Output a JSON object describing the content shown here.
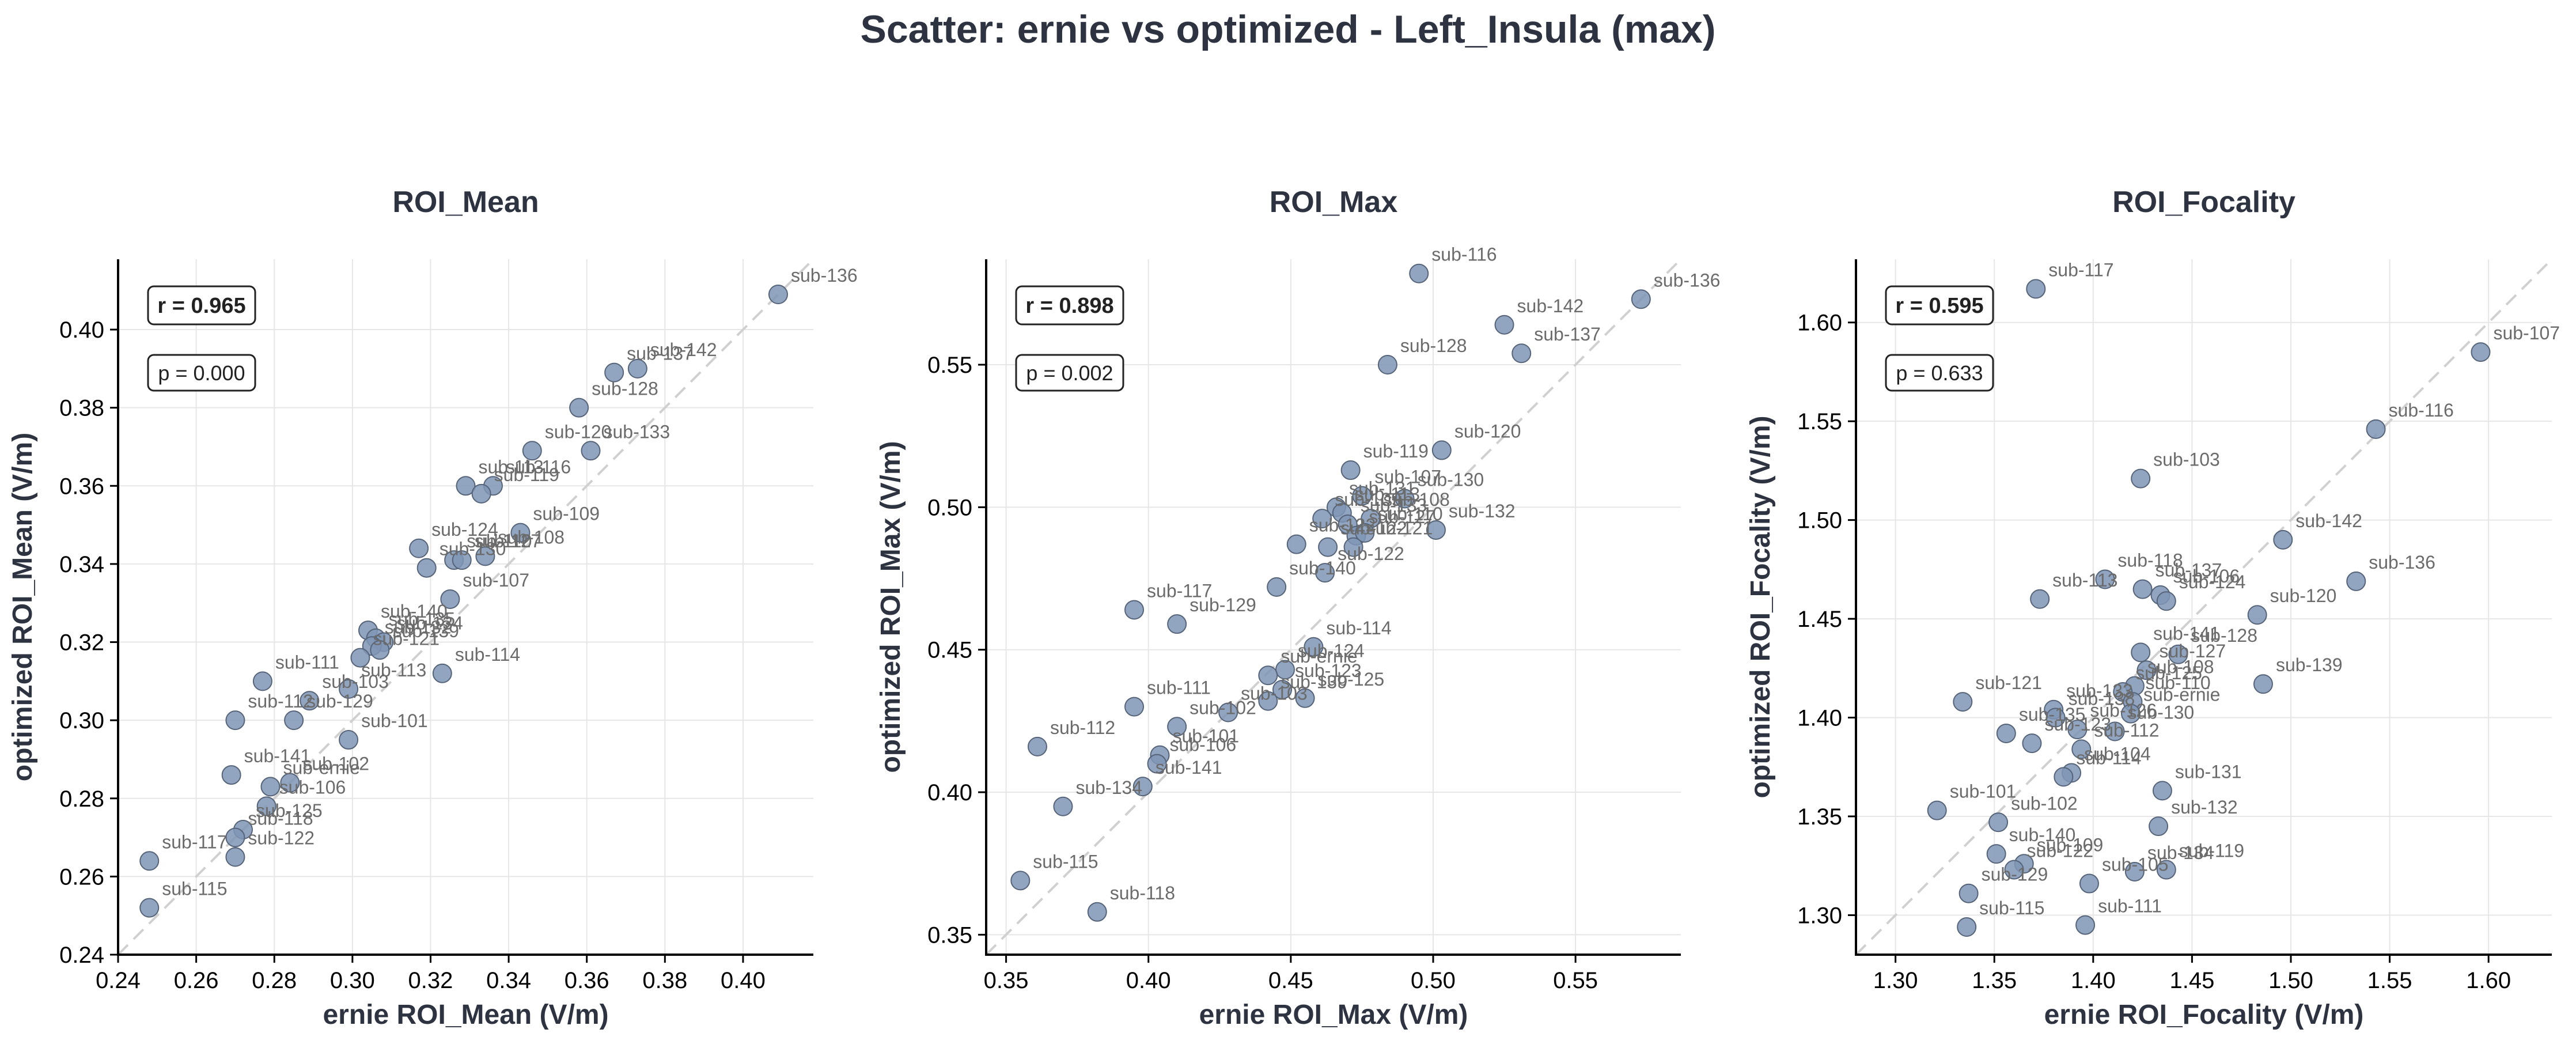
{
  "figure_title": "Scatter: ernie vs optimized - Left_Insula (max)",
  "colors": {
    "point": "#7f95b5",
    "point_edge": "#56647a",
    "label": "#6b6b6b",
    "grid": "#e6e6e6",
    "diag": "#d0d0d0",
    "text": "#2d3340"
  },
  "chart_data": [
    {
      "type": "scatter",
      "title": "ROI_Mean",
      "xlabel": "ernie ROI_Mean (V/m)",
      "ylabel": "optimized ROI_Mean (V/m)",
      "xlim": [
        0.24,
        0.418
      ],
      "ylim": [
        0.24,
        0.418
      ],
      "xticks": [
        "0.24",
        "0.26",
        "0.28",
        "0.30",
        "0.32",
        "0.34",
        "0.36",
        "0.38",
        "0.40"
      ],
      "yticks": [
        "0.24",
        "0.26",
        "0.28",
        "0.30",
        "0.32",
        "0.34",
        "0.36",
        "0.38",
        "0.40"
      ],
      "r_label": "r = 0.965",
      "p_label": "p = 0.000",
      "grid": true,
      "identity_line": true,
      "points": [
        {
          "label": "sub-136",
          "x": 0.409,
          "y": 0.409
        },
        {
          "label": "sub-142",
          "x": 0.373,
          "y": 0.39
        },
        {
          "label": "sub-137",
          "x": 0.367,
          "y": 0.389
        },
        {
          "label": "sub-128",
          "x": 0.358,
          "y": 0.38
        },
        {
          "label": "sub-120",
          "x": 0.346,
          "y": 0.369
        },
        {
          "label": "sub-133",
          "x": 0.361,
          "y": 0.369
        },
        {
          "label": "sub-113",
          "x": 0.329,
          "y": 0.36
        },
        {
          "label": "sub-116",
          "x": 0.336,
          "y": 0.36
        },
        {
          "label": "sub-119",
          "x": 0.333,
          "y": 0.358
        },
        {
          "label": "sub-109",
          "x": 0.343,
          "y": 0.348
        },
        {
          "label": "sub-124",
          "x": 0.317,
          "y": 0.344
        },
        {
          "label": "sub-110",
          "x": 0.326,
          "y": 0.341
        },
        {
          "label": "sub-127",
          "x": 0.328,
          "y": 0.341
        },
        {
          "label": "sub-108",
          "x": 0.334,
          "y": 0.342
        },
        {
          "label": "sub-130",
          "x": 0.319,
          "y": 0.339
        },
        {
          "label": "sub-107",
          "x": 0.325,
          "y": 0.331
        },
        {
          "label": "sub-140",
          "x": 0.304,
          "y": 0.323
        },
        {
          "label": "sub-135",
          "x": 0.306,
          "y": 0.321
        },
        {
          "label": "sub-134",
          "x": 0.308,
          "y": 0.32
        },
        {
          "label": "sub-132",
          "x": 0.305,
          "y": 0.319
        },
        {
          "label": "sub-139",
          "x": 0.307,
          "y": 0.318
        },
        {
          "label": "sub-121",
          "x": 0.302,
          "y": 0.316
        },
        {
          "label": "sub-114",
          "x": 0.323,
          "y": 0.312
        },
        {
          "label": "sub-111",
          "x": 0.277,
          "y": 0.31
        },
        {
          "label": "sub-113",
          "x": 0.299,
          "y": 0.308
        },
        {
          "label": "sub-103",
          "x": 0.289,
          "y": 0.305
        },
        {
          "label": "sub-129",
          "x": 0.285,
          "y": 0.3
        },
        {
          "label": "sub-112",
          "x": 0.27,
          "y": 0.3
        },
        {
          "label": "sub-101",
          "x": 0.299,
          "y": 0.295
        },
        {
          "label": "sub-141",
          "x": 0.269,
          "y": 0.286
        },
        {
          "label": "sub-102",
          "x": 0.284,
          "y": 0.284
        },
        {
          "label": "sub-ernie",
          "x": 0.279,
          "y": 0.283
        },
        {
          "label": "sub-106",
          "x": 0.278,
          "y": 0.278
        },
        {
          "label": "sub-125",
          "x": 0.272,
          "y": 0.272
        },
        {
          "label": "sub-117",
          "x": 0.248,
          "y": 0.264
        },
        {
          "label": "sub-118",
          "x": 0.27,
          "y": 0.27
        },
        {
          "label": "sub-122",
          "x": 0.27,
          "y": 0.265
        },
        {
          "label": "sub-115",
          "x": 0.248,
          "y": 0.252
        }
      ]
    },
    {
      "type": "scatter",
      "title": "ROI_Max",
      "xlabel": "ernie ROI_Max (V/m)",
      "ylabel": "optimized ROI_Max (V/m)",
      "xlim": [
        0.343,
        0.587
      ],
      "ylim": [
        0.343,
        0.587
      ],
      "xticks": [
        "0.35",
        "0.40",
        "0.45",
        "0.50",
        "0.55"
      ],
      "yticks": [
        "0.35",
        "0.40",
        "0.45",
        "0.50",
        "0.55"
      ],
      "r_label": "r = 0.898",
      "p_label": "p = 0.002",
      "grid": true,
      "identity_line": true,
      "points": [
        {
          "label": "sub-116",
          "x": 0.495,
          "y": 0.582
        },
        {
          "label": "sub-136",
          "x": 0.573,
          "y": 0.573
        },
        {
          "label": "sub-142",
          "x": 0.525,
          "y": 0.564
        },
        {
          "label": "sub-137",
          "x": 0.531,
          "y": 0.554
        },
        {
          "label": "sub-128",
          "x": 0.484,
          "y": 0.55
        },
        {
          "label": "sub-120",
          "x": 0.503,
          "y": 0.52
        },
        {
          "label": "sub-119",
          "x": 0.471,
          "y": 0.513
        },
        {
          "label": "sub-107",
          "x": 0.475,
          "y": 0.504
        },
        {
          "label": "sub-130",
          "x": 0.49,
          "y": 0.503
        },
        {
          "label": "sub-131",
          "x": 0.466,
          "y": 0.5
        },
        {
          "label": "sub-113",
          "x": 0.468,
          "y": 0.498
        },
        {
          "label": "sub-108",
          "x": 0.478,
          "y": 0.496
        },
        {
          "label": "sub-132",
          "x": 0.501,
          "y": 0.492
        },
        {
          "label": "sub-109",
          "x": 0.461,
          "y": 0.496
        },
        {
          "label": "sub-133",
          "x": 0.47,
          "y": 0.494
        },
        {
          "label": "sub-127",
          "x": 0.473,
          "y": 0.49
        },
        {
          "label": "sub-110",
          "x": 0.476,
          "y": 0.491
        },
        {
          "label": "sub-121",
          "x": 0.472,
          "y": 0.486
        },
        {
          "label": "sub-122",
          "x": 0.463,
          "y": 0.486
        },
        {
          "label": "sub-122",
          "x": 0.452,
          "y": 0.487
        },
        {
          "label": "sub-122",
          "x": 0.462,
          "y": 0.477
        },
        {
          "label": "sub-140",
          "x": 0.445,
          "y": 0.472
        },
        {
          "label": "sub-117",
          "x": 0.395,
          "y": 0.464
        },
        {
          "label": "sub-129",
          "x": 0.41,
          "y": 0.459
        },
        {
          "label": "sub-114",
          "x": 0.458,
          "y": 0.451
        },
        {
          "label": "sub-124",
          "x": 0.448,
          "y": 0.443
        },
        {
          "label": "sub-ernie",
          "x": 0.442,
          "y": 0.441
        },
        {
          "label": "sub-123",
          "x": 0.447,
          "y": 0.436
        },
        {
          "label": "sub-125",
          "x": 0.455,
          "y": 0.433
        },
        {
          "label": "sub-139",
          "x": 0.442,
          "y": 0.432
        },
        {
          "label": "sub-111",
          "x": 0.395,
          "y": 0.43
        },
        {
          "label": "sub-103",
          "x": 0.428,
          "y": 0.428
        },
        {
          "label": "sub-102",
          "x": 0.41,
          "y": 0.423
        },
        {
          "label": "sub-101",
          "x": 0.404,
          "y": 0.413
        },
        {
          "label": "sub-112",
          "x": 0.361,
          "y": 0.416
        },
        {
          "label": "sub-106",
          "x": 0.403,
          "y": 0.41
        },
        {
          "label": "sub-141",
          "x": 0.398,
          "y": 0.402
        },
        {
          "label": "sub-134",
          "x": 0.37,
          "y": 0.395
        },
        {
          "label": "sub-115",
          "x": 0.355,
          "y": 0.369
        },
        {
          "label": "sub-118",
          "x": 0.382,
          "y": 0.358
        }
      ]
    },
    {
      "type": "scatter",
      "title": "ROI_Focality",
      "xlabel": "ernie ROI_Focality (V/m)",
      "ylabel": "optimized ROI_Focality (V/m)",
      "xlim": [
        1.28,
        1.632
      ],
      "ylim": [
        1.28,
        1.632
      ],
      "xticks": [
        "1.30",
        "1.35",
        "1.40",
        "1.45",
        "1.50",
        "1.55",
        "1.60"
      ],
      "yticks": [
        "1.30",
        "1.35",
        "1.40",
        "1.45",
        "1.50",
        "1.55",
        "1.60"
      ],
      "r_label": "r = 0.595",
      "p_label": "p = 0.633",
      "grid": true,
      "identity_line": true,
      "points": [
        {
          "label": "sub-117",
          "x": 1.371,
          "y": 1.617
        },
        {
          "label": "sub-107",
          "x": 1.596,
          "y": 1.585
        },
        {
          "label": "sub-116",
          "x": 1.543,
          "y": 1.546
        },
        {
          "label": "sub-103",
          "x": 1.424,
          "y": 1.521
        },
        {
          "label": "sub-142",
          "x": 1.496,
          "y": 1.49
        },
        {
          "label": "sub-136",
          "x": 1.533,
          "y": 1.469
        },
        {
          "label": "sub-137",
          "x": 1.425,
          "y": 1.465
        },
        {
          "label": "sub-106",
          "x": 1.434,
          "y": 1.462
        },
        {
          "label": "sub-124",
          "x": 1.437,
          "y": 1.459
        },
        {
          "label": "sub-113",
          "x": 1.373,
          "y": 1.46
        },
        {
          "label": "sub-118",
          "x": 1.406,
          "y": 1.47
        },
        {
          "label": "sub-120",
          "x": 1.483,
          "y": 1.452
        },
        {
          "label": "sub-141",
          "x": 1.424,
          "y": 1.433
        },
        {
          "label": "sub-128",
          "x": 1.443,
          "y": 1.432
        },
        {
          "label": "sub-139",
          "x": 1.486,
          "y": 1.417
        },
        {
          "label": "sub-127",
          "x": 1.427,
          "y": 1.424
        },
        {
          "label": "sub-108",
          "x": 1.421,
          "y": 1.416
        },
        {
          "label": "sub-125",
          "x": 1.415,
          "y": 1.413
        },
        {
          "label": "sub-110",
          "x": 1.42,
          "y": 1.408
        },
        {
          "label": "sub-121",
          "x": 1.334,
          "y": 1.408
        },
        {
          "label": "sub-ernie",
          "x": 1.419,
          "y": 1.402
        },
        {
          "label": "sub-133",
          "x": 1.38,
          "y": 1.404
        },
        {
          "label": "sub-138",
          "x": 1.381,
          "y": 1.4
        },
        {
          "label": "sub-126",
          "x": 1.392,
          "y": 1.394
        },
        {
          "label": "sub-130",
          "x": 1.411,
          "y": 1.393
        },
        {
          "label": "sub-135",
          "x": 1.356,
          "y": 1.392
        },
        {
          "label": "sub-123",
          "x": 1.369,
          "y": 1.387
        },
        {
          "label": "sub-112",
          "x": 1.394,
          "y": 1.384
        },
        {
          "label": "sub-104",
          "x": 1.389,
          "y": 1.372
        },
        {
          "label": "sub-114",
          "x": 1.385,
          "y": 1.37
        },
        {
          "label": "sub-131",
          "x": 1.435,
          "y": 1.363
        },
        {
          "label": "sub-101",
          "x": 1.321,
          "y": 1.353
        },
        {
          "label": "sub-102",
          "x": 1.352,
          "y": 1.347
        },
        {
          "label": "sub-132",
          "x": 1.433,
          "y": 1.345
        },
        {
          "label": "sub-140",
          "x": 1.351,
          "y": 1.331
        },
        {
          "label": "sub-109",
          "x": 1.365,
          "y": 1.326
        },
        {
          "label": "sub-122",
          "x": 1.36,
          "y": 1.323
        },
        {
          "label": "sub-134",
          "x": 1.421,
          "y": 1.322
        },
        {
          "label": "sub-119",
          "x": 1.437,
          "y": 1.323
        },
        {
          "label": "sub-105",
          "x": 1.398,
          "y": 1.316
        },
        {
          "label": "sub-129",
          "x": 1.337,
          "y": 1.311
        },
        {
          "label": "sub-111",
          "x": 1.396,
          "y": 1.295
        },
        {
          "label": "sub-115",
          "x": 1.336,
          "y": 1.294
        }
      ]
    }
  ]
}
